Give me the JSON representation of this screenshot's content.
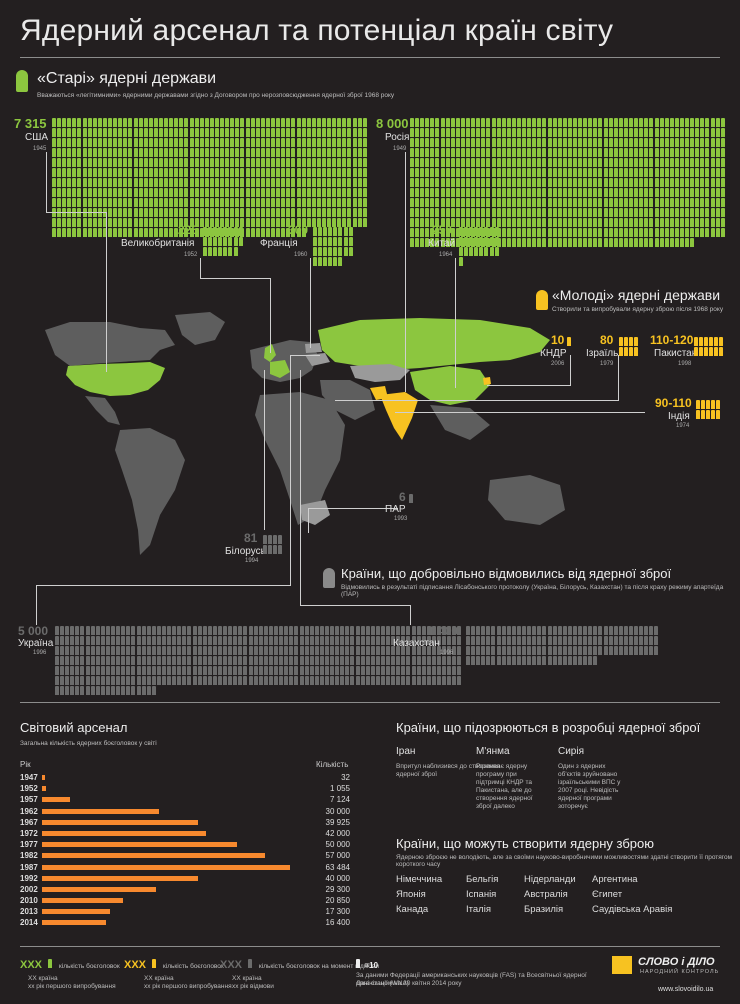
{
  "title": "Ядерний арсенал та потенціал країн світу",
  "old": {
    "heading": "«Старі» ядерні держави",
    "desc": "Вважаються «легітимними» ядерними державами згідно з Договором про нерозповсюдження ядерної зброї 1968 року",
    "usa": {
      "num": "7 315",
      "name": "США",
      "year": "1945"
    },
    "russia": {
      "num": "8 000",
      "name": "Росія",
      "year": "1949"
    },
    "uk": {
      "num": "225",
      "name": "Великобританія",
      "year": "1952"
    },
    "france": {
      "num": "300",
      "name": "Франція",
      "year": "1960"
    },
    "china": {
      "num": "250",
      "name": "Китай",
      "year": "1964"
    }
  },
  "young": {
    "heading": "«Молоді» ядерні держави",
    "desc": "Створили та випробували ядерну зброю після 1968 року",
    "nk": {
      "num": "10",
      "name": "КНДР",
      "year": "2006"
    },
    "israel": {
      "num": "80",
      "name": "Ізраїль",
      "year": "1979"
    },
    "pakistan": {
      "num": "110-120",
      "name": "Пакистан",
      "year": "1998"
    },
    "india": {
      "num": "90-110",
      "name": "Індія",
      "year": "1974"
    }
  },
  "renounced": {
    "heading": "Країни, що добровільно відмовились від ядерної зброї",
    "desc": "Відмовились в результаті підписання Лісабонського протоколу (Україна, Білорусь, Казахстан) та після краху режиму апартеїда (ПАР)",
    "sa": {
      "num": "6",
      "name": "ПАР",
      "year": "1993"
    },
    "belarus": {
      "num": "81",
      "name": "Білорусь",
      "year": "1994"
    },
    "ukraine": {
      "num": "5 000",
      "name": "Україна",
      "year": "1996"
    },
    "kazakhstan": {
      "num": "1 400",
      "name": "Казахстан",
      "year": "1996"
    }
  },
  "arsenal": {
    "heading": "Світовий арсенал",
    "desc": "Загальна кількість ядерних боєголовок у світі",
    "col_year": "Рік",
    "col_count": "Кількість",
    "rows": [
      {
        "year": "1947",
        "count": "32",
        "value": 32
      },
      {
        "year": "1952",
        "count": "1 055",
        "value": 1055
      },
      {
        "year": "1957",
        "count": "7 124",
        "value": 7124
      },
      {
        "year": "1962",
        "count": "30 000",
        "value": 30000
      },
      {
        "year": "1967",
        "count": "39 925",
        "value": 39925
      },
      {
        "year": "1972",
        "count": "42 000",
        "value": 42000
      },
      {
        "year": "1977",
        "count": "50 000",
        "value": 50000
      },
      {
        "year": "1982",
        "count": "57 000",
        "value": 57000
      },
      {
        "year": "1987",
        "count": "63 484",
        "value": 63484
      },
      {
        "year": "1992",
        "count": "40 000",
        "value": 40000
      },
      {
        "year": "2002",
        "count": "29 300",
        "value": 29300
      },
      {
        "year": "2010",
        "count": "20 850",
        "value": 20850
      },
      {
        "year": "2013",
        "count": "17 300",
        "value": 17300
      },
      {
        "year": "2014",
        "count": "16 400",
        "value": 16400
      }
    ]
  },
  "suspected": {
    "heading": "Країни, що підозрюються в розробці ядерної зброї",
    "items": [
      {
        "name": "Іран",
        "text": "Впритул наблизився до створення ядерної зброї"
      },
      {
        "name": "М'янма",
        "text": "Розвиває ядерну програму при підтримці КНДР та Пакистана, але до створення ядерної зброї далеко"
      },
      {
        "name": "Сирія",
        "text": "Один з ядерних об'єктів зруйновано ізраїльськими ВПС у 2007 році. Невідість ядерної програми зоторечує"
      }
    ]
  },
  "potential": {
    "heading": "Країни, що можуть створити ядерну зброю",
    "desc": "Ядерною зброєю не володіють, але за своїми науково-виробничими можливостями здатні створити її протягом короткого часу",
    "col1": [
      "Німеччина",
      "Японія",
      "Канада"
    ],
    "col2": [
      "Бельгія",
      "Іспанія",
      "Італія"
    ],
    "col3": [
      "Нідерланди",
      "Австралія",
      "Бразилія"
    ],
    "col4": [
      "Аргентина",
      "Єгипет",
      "Саудівська Аравія"
    ]
  },
  "legend": {
    "g_num": "ХХХ",
    "g_label": "кількість боєголовок",
    "g_line1": "ХХ країна",
    "g_line2": "хх рік першого випробування",
    "y_num": "ХХХ",
    "y_label": "кількість боєголовок",
    "y_line1": "ХХ країна",
    "y_line2": "хх рік першого випробування",
    "d_num": "ХХХ",
    "d_label": "кількість боєголовок на момент відмови",
    "d_line1": "ХХ країна",
    "d_line2": "хх рік відмови",
    "scale": "=10",
    "source1": "За даними Федерації американських науковців (FAS) та Всесвітньої ядерної організації (WNA)",
    "source2": "Дані станом на 30 квітня 2014 року",
    "brand": "СЛОВО і ДІЛО",
    "brand_sub": "НАРОДНИЙ КОНТРОЛЬ",
    "site": "www.slovoidilo.ua"
  },
  "colors": {
    "old": "#8cc63f",
    "young": "#f7c221",
    "renounced": "#6b6b6b",
    "bars": "#f7892e"
  }
}
